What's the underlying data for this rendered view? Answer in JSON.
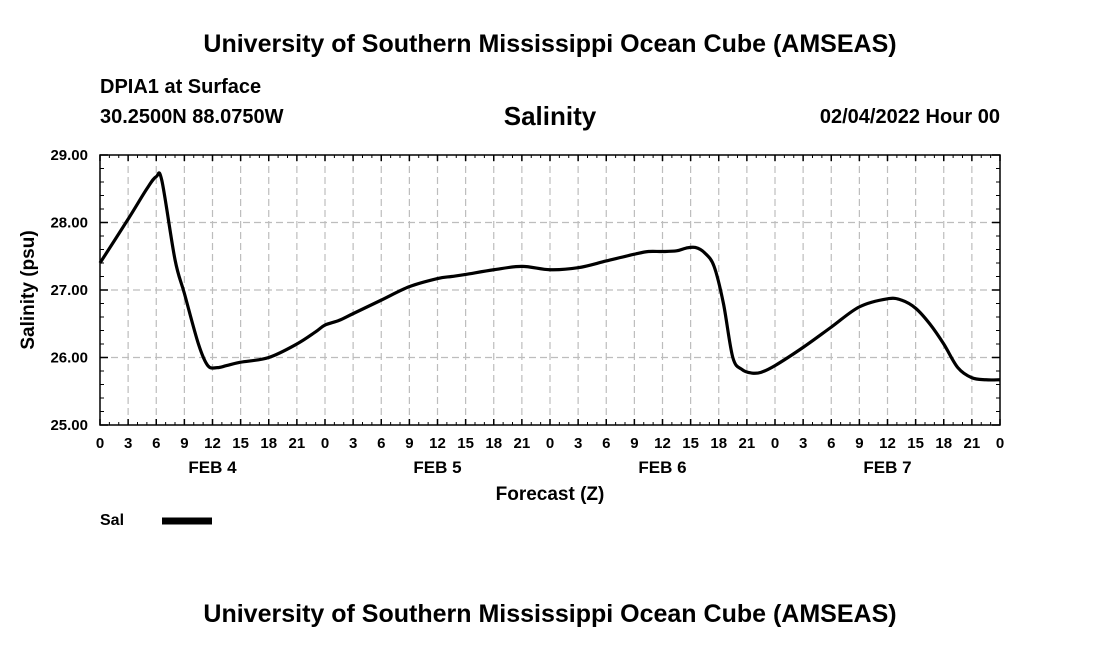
{
  "header": {
    "top_title": "University of Southern Mississippi Ocean Cube (AMSEAS)",
    "station": "DPIA1 at Surface",
    "location": "30.2500N  88.0750W",
    "date": "02/04/2022 Hour 00"
  },
  "footer": {
    "bottom_title": "University of Southern Mississippi Ocean Cube (AMSEAS)"
  },
  "chart_data": {
    "type": "line",
    "title": "Salinity",
    "xlabel": "Forecast (Z)",
    "ylabel": "Salinity (psu)",
    "ylim": [
      25.0,
      29.0
    ],
    "xlim": [
      0,
      96
    ],
    "yticks": [
      25.0,
      26.0,
      27.0,
      28.0,
      29.0
    ],
    "ytick_labels": [
      "25.00",
      "26.00",
      "27.00",
      "28.00",
      "29.00"
    ],
    "xtick_labels": [
      "0",
      "3",
      "6",
      "9",
      "12",
      "15",
      "18",
      "21",
      "0",
      "3",
      "6",
      "9",
      "12",
      "15",
      "18",
      "21",
      "0",
      "3",
      "6",
      "9",
      "12",
      "15",
      "18",
      "21",
      "0",
      "3",
      "6",
      "9",
      "12",
      "15",
      "18",
      "21",
      "0"
    ],
    "day_labels": [
      {
        "label": "FEB 4",
        "hour": 12
      },
      {
        "label": "FEB 5",
        "hour": 36
      },
      {
        "label": "FEB 6",
        "hour": 60
      },
      {
        "label": "FEB 7",
        "hour": 84
      }
    ],
    "grid": true,
    "legend": {
      "position": "bottom-left",
      "entries": [
        {
          "name": "Sal",
          "color": "#000000"
        }
      ]
    },
    "series": [
      {
        "name": "Sal",
        "color": "#000000",
        "x": [
          0,
          3,
          5,
          6,
          6.6,
          8,
          9,
          10.5,
          11.5,
          12.5,
          13.5,
          15,
          18,
          21,
          23,
          24,
          25.5,
          27,
          30,
          33,
          36,
          37.5,
          39,
          42,
          45,
          48,
          51,
          54,
          57,
          58.5,
          60,
          61.5,
          62.5,
          63.5,
          64.5,
          65.5,
          66.5,
          67.5,
          68.5,
          69.5,
          70.5,
          72,
          75,
          78,
          81,
          84,
          85.5,
          87,
          88.5,
          90,
          91.5,
          93,
          94.5,
          96
        ],
        "values": [
          27.4,
          28.05,
          28.5,
          28.68,
          28.62,
          27.45,
          26.95,
          26.2,
          25.88,
          25.85,
          25.88,
          25.93,
          26.0,
          26.2,
          26.38,
          26.48,
          26.55,
          26.65,
          26.85,
          27.05,
          27.17,
          27.2,
          27.23,
          27.3,
          27.35,
          27.3,
          27.33,
          27.43,
          27.53,
          27.57,
          27.57,
          27.58,
          27.62,
          27.63,
          27.55,
          27.35,
          26.8,
          26.0,
          25.82,
          25.77,
          25.78,
          25.88,
          26.15,
          26.45,
          26.75,
          26.87,
          26.85,
          26.73,
          26.5,
          26.2,
          25.85,
          25.7,
          25.67,
          25.67
        ]
      }
    ]
  }
}
